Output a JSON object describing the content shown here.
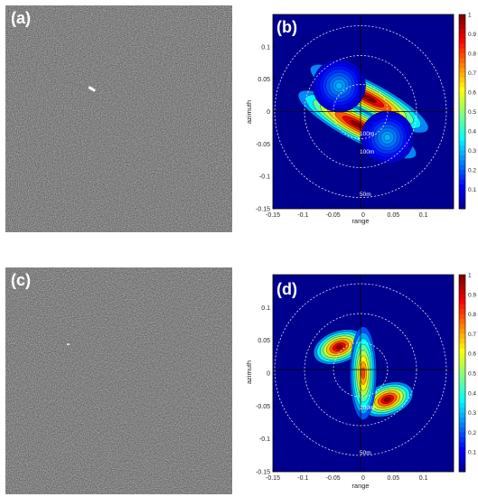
{
  "panels": [
    {
      "id": "a",
      "label": "(a)",
      "type": "sar-image"
    },
    {
      "id": "b",
      "label": "(b)",
      "type": "spectrum",
      "xlabel": "range",
      "ylabel": "azimuth",
      "ring_labels": [
        "100m",
        "100m",
        "50m"
      ]
    },
    {
      "id": "c",
      "label": "(c)",
      "type": "sar-image"
    },
    {
      "id": "d",
      "label": "(d)",
      "type": "spectrum",
      "xlabel": "range",
      "ylabel": "azimuth",
      "ring_labels": [
        "100m",
        "50m"
      ]
    }
  ],
  "colors": {
    "background": "#00008f",
    "accent": "#ff0000"
  },
  "chart_data": [
    {
      "type": "heatmap",
      "title": "(b)",
      "xlabel": "range",
      "ylabel": "azimuth",
      "xlim": [
        -0.15,
        0.15
      ],
      "ylim": [
        -0.15,
        0.15
      ],
      "xticks": [
        "-0.15",
        "-0.1",
        "-0.05",
        "0",
        "0.05",
        "0.1"
      ],
      "yticks": [
        "0.1",
        "0.05",
        "0",
        "-0.05",
        "-0.1",
        "-0.15"
      ],
      "colorbar_ticks": [
        "1",
        "0.9",
        "0.8",
        "0.7",
        "0.6",
        "0.5",
        "0.4",
        "0.3",
        "0.2",
        "0.1"
      ],
      "peaks": [
        {
          "x": 0.01,
          "y": 0.02,
          "value": 1.0,
          "rx": 0.012,
          "ry": 0.05,
          "rot": -62
        },
        {
          "x": -0.01,
          "y": -0.02,
          "value": 1.0,
          "rx": 0.012,
          "ry": 0.05,
          "rot": -62
        },
        {
          "x": -0.04,
          "y": 0.04,
          "value": 0.3,
          "rx": 0.02,
          "ry": 0.02,
          "rot": 0
        },
        {
          "x": 0.04,
          "y": -0.04,
          "value": 0.3,
          "rx": 0.02,
          "ry": 0.02,
          "rot": 0
        }
      ]
    },
    {
      "type": "heatmap",
      "title": "(d)",
      "xlabel": "range",
      "ylabel": "azimuth",
      "xlim": [
        -0.15,
        0.15
      ],
      "ylim": [
        -0.15,
        0.15
      ],
      "xticks": [
        "-0.15",
        "-0.1",
        "-0.05",
        "0",
        "0.05",
        "0.1"
      ],
      "yticks": [
        "0.1",
        "0.05",
        "0",
        "-0.05",
        "-0.1",
        "-0.15"
      ],
      "colorbar_ticks": [
        "1",
        "0.9",
        "0.8",
        "0.7",
        "0.6",
        "0.5",
        "0.4",
        "0.3",
        "0.2",
        "0.1"
      ],
      "peaks": [
        {
          "x": -0.04,
          "y": 0.04,
          "value": 1.0,
          "rx": 0.02,
          "ry": 0.012,
          "rot": -20
        },
        {
          "x": 0.04,
          "y": -0.04,
          "value": 1.0,
          "rx": 0.02,
          "ry": 0.012,
          "rot": -20
        },
        {
          "x": 0.0,
          "y": 0.0,
          "value": 0.8,
          "rx": 0.01,
          "ry": 0.035,
          "rot": 0
        }
      ]
    }
  ]
}
